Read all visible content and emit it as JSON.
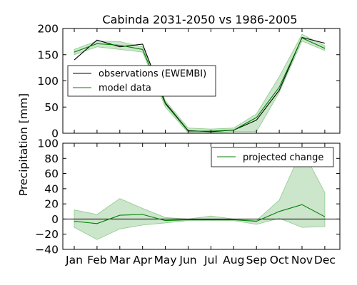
{
  "chart_data": {
    "title": "Cabinda 2031-2050 vs 1986-2005",
    "ylabel": "Precipitation [mm]",
    "categories": [
      "Jan",
      "Feb",
      "Mar",
      "Apr",
      "May",
      "Jun",
      "Jul",
      "Aug",
      "Sep",
      "Oct",
      "Nov",
      "Dec"
    ],
    "colors": {
      "model": "#008000",
      "band": "#a8d5a8",
      "observations": "#000000"
    },
    "panels": [
      {
        "type": "line",
        "ylim": [
          0,
          200
        ],
        "yticks": [
          "0",
          "50",
          "100",
          "150",
          "200"
        ],
        "legend_position": "center-left",
        "series": [
          {
            "name": "observations (EWEMBI)",
            "values": [
              140,
              178,
              165,
              170,
              58,
              5,
              3,
              6,
              25,
              82,
              183,
              172
            ]
          },
          {
            "name": "model data",
            "values": [
              155,
              171,
              168,
              160,
              56,
              4,
              4,
              6,
              30,
              88,
              182,
              162
            ]
          }
        ],
        "band": {
          "lower": [
            150,
            165,
            160,
            155,
            50,
            1,
            1,
            3,
            3,
            78,
            176,
            158
          ],
          "upper": [
            160,
            176,
            175,
            165,
            62,
            10,
            8,
            10,
            37,
            108,
            189,
            167
          ]
        }
      },
      {
        "type": "line",
        "ylim": [
          -40,
          100
        ],
        "yticks": [
          "−40",
          "−20",
          "0",
          "20",
          "40",
          "60",
          "80",
          "100"
        ],
        "legend_position": "top-right",
        "zero_line": true,
        "series": [
          {
            "name": "projected change",
            "values": [
              -3,
              -6,
              5,
              6,
              -2,
              -1,
              -1,
              -1,
              -3,
              10,
              19,
              3
            ]
          }
        ],
        "band": {
          "lower": [
            -11,
            -27,
            -13,
            -8,
            -5,
            -2,
            -2,
            -2,
            -7,
            1,
            -11,
            -10
          ],
          "upper": [
            12,
            6,
            27,
            14,
            2,
            0,
            4,
            0,
            -2,
            25,
            92,
            35
          ]
        }
      }
    ]
  }
}
